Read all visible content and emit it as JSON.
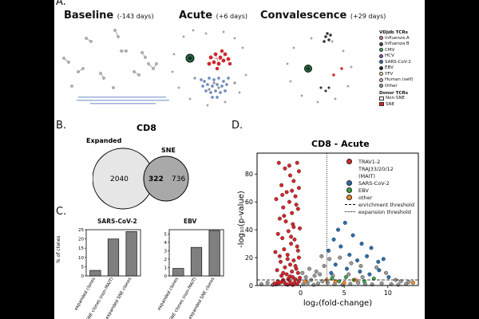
{
  "panels": {
    "a": {
      "letter": "A.",
      "networks": [
        {
          "name": "Baseline",
          "days": "(-143 days)"
        },
        {
          "name": "Acute",
          "days": "(+6 days)"
        },
        {
          "name": "Convalescence",
          "days": "(+29 days)"
        }
      ],
      "legend": {
        "vdjdb_title": "VDJdb TCRs",
        "vdjdb_items": [
          {
            "label": "Influenza A",
            "color": "#d97a8a"
          },
          {
            "label": "Influenza B",
            "color": "#444444"
          },
          {
            "label": "CMV",
            "color": "#3aa84a"
          },
          {
            "label": "HCV",
            "color": "#8a4fbf"
          },
          {
            "label": "SARS-CoV-2",
            "color": "#3f6fb5"
          },
          {
            "label": "EBV",
            "color": "#1f1f1f"
          },
          {
            "label": "YFV",
            "color": "#e8d7a0"
          },
          {
            "label": "Human (self)",
            "color": "#e0a8c8"
          },
          {
            "label": "Other",
            "color": "#9a9a9a"
          }
        ],
        "donor_title": "Donor TCRs",
        "donor_items": [
          {
            "label": "Non-SNE",
            "color": "#f2f2f2"
          },
          {
            "label": "SNE",
            "color": "#d9252b"
          }
        ]
      }
    },
    "b": {
      "letter": "B.",
      "title": "CD8",
      "left_label": "Expanded",
      "right_label": "SNE",
      "left_only": "2040",
      "overlap": "322",
      "right_only": "736"
    },
    "c": {
      "letter": "C.",
      "ylabel": "% of clones",
      "categories": [
        "expanded clones",
        "SNE clones (non-MAIT)",
        "expanded SNE clones"
      ]
    },
    "d": {
      "letter": "D.",
      "legend": [
        {
          "label": "TRAV1-2",
          "color": "#d9252b",
          "kind": "dot"
        },
        {
          "label": "TRAJ33/20/12",
          "color": "",
          "kind": "cont"
        },
        {
          "label": "(MAIT)",
          "color": "",
          "kind": "cont"
        },
        {
          "label": "SARS-CoV-2",
          "color": "#2b6fb0",
          "kind": "dot"
        },
        {
          "label": "EBV",
          "color": "#3aa84a",
          "kind": "dot"
        },
        {
          "label": "other",
          "color": "#f28c28",
          "kind": "dot"
        },
        {
          "label": "enrichment threshold",
          "color": "#000000",
          "kind": "dash"
        },
        {
          "label": "expansion threshold",
          "color": "#000000",
          "kind": "dot-line"
        }
      ]
    }
  },
  "chart_data": [
    {
      "type": "bar",
      "title": "SARS-CoV-2",
      "categories": [
        "expanded clones",
        "SNE clones (non-MAIT)",
        "expanded SNE clones"
      ],
      "values": [
        3.0,
        20.0,
        24.0
      ],
      "ylabel": "% of clones",
      "ylim": [
        0,
        25
      ],
      "yticks": [
        0,
        5,
        10,
        15,
        20,
        25
      ],
      "color": "#7f7f7f"
    },
    {
      "type": "bar",
      "title": "EBV",
      "categories": [
        "expanded clones",
        "SNE clones (non-MAIT)",
        "expanded SNE clones"
      ],
      "values": [
        0.9,
        3.4,
        5.4
      ],
      "ylim": [
        0,
        5.5
      ],
      "yticks": [
        0.0,
        1.0,
        2.0,
        3.0,
        4.0,
        5.0
      ],
      "color": "#7f7f7f"
    },
    {
      "type": "scatter",
      "title": "CD8 - Acute",
      "xlabel": "log₂(fold-change)",
      "ylabel": "-log₁₀(p-value)",
      "xlim": [
        -5,
        13.5
      ],
      "ylim": [
        0,
        95
      ],
      "xticks": [
        0,
        5,
        10
      ],
      "yticks": [
        0,
        20,
        40,
        60,
        80
      ],
      "enrichment_threshold_y": 4,
      "expansion_threshold_x": 3,
      "series": [
        {
          "name": "TRAV1-2 TRAJ33/20/12 (MAIT)",
          "color": "#d9252b",
          "points": [
            [
              -2.5,
              88
            ],
            [
              -1.8,
              84
            ],
            [
              -0.4,
              88
            ],
            [
              -1.2,
              79
            ],
            [
              -0.8,
              75
            ],
            [
              -2.2,
              72
            ],
            [
              -0.2,
              70
            ],
            [
              -1.6,
              67
            ],
            [
              -2.8,
              62
            ],
            [
              -0.6,
              64
            ],
            [
              -1.3,
              60
            ],
            [
              -2.0,
              56
            ],
            [
              -0.3,
              55
            ],
            [
              -1.0,
              52
            ],
            [
              -2.4,
              48
            ],
            [
              -1.7,
              46
            ],
            [
              -0.9,
              44
            ],
            [
              -0.1,
              41
            ],
            [
              -1.4,
              39
            ],
            [
              -2.6,
              37
            ],
            [
              -2.1,
              34
            ],
            [
              -0.7,
              33
            ],
            [
              -1.1,
              30
            ],
            [
              -0.4,
              28
            ],
            [
              -1.9,
              26
            ],
            [
              -2.9,
              24
            ],
            [
              -1.5,
              22
            ],
            [
              -0.2,
              20
            ],
            [
              -0.8,
              18
            ],
            [
              -2.3,
              17
            ],
            [
              -1.2,
              15
            ],
            [
              -1.8,
              13
            ],
            [
              -0.5,
              12
            ],
            [
              -2.7,
              11
            ],
            [
              -1.0,
              10
            ],
            [
              -0.3,
              9
            ],
            [
              -1.6,
              8
            ],
            [
              -2.2,
              7
            ],
            [
              -0.9,
              6
            ],
            [
              -1.4,
              5
            ],
            [
              -0.6,
              4.5
            ],
            [
              -2.0,
              4
            ],
            [
              -1.3,
              3.5
            ],
            [
              -0.2,
              3
            ],
            [
              -1.9,
              2.5
            ],
            [
              -0.7,
              2
            ],
            [
              -2.5,
              1.8
            ],
            [
              -1.1,
              1.5
            ],
            [
              -0.4,
              1.2
            ],
            [
              -1.7,
              1
            ],
            [
              -2.8,
              0.8
            ],
            [
              -1.5,
              0.6
            ],
            [
              -0.9,
              0.4
            ],
            [
              -2.3,
              2.2
            ],
            [
              -0.1,
              5.5
            ],
            [
              -1.2,
              6.5
            ],
            [
              -2.0,
              9
            ],
            [
              -0.6,
              14
            ],
            [
              -1.5,
              19
            ],
            [
              -2.4,
              21
            ],
            [
              -0.3,
              25
            ],
            [
              -1.1,
              35
            ],
            [
              -0.8,
              42
            ],
            [
              -1.9,
              50
            ],
            [
              -0.5,
              58
            ],
            [
              -2.1,
              65
            ],
            [
              -1.0,
              68
            ],
            [
              -0.2,
              82
            ],
            [
              -1.3,
              86
            ],
            [
              -2.6,
              3
            ],
            [
              -3.0,
              1.5
            ]
          ]
        },
        {
          "name": "SARS-CoV-2",
          "color": "#2b6fb0",
          "points": [
            [
              3.2,
              25
            ],
            [
              3.8,
              33
            ],
            [
              4.3,
              40
            ],
            [
              4.6,
              28
            ],
            [
              5.1,
              45
            ],
            [
              5.6,
              22
            ],
            [
              6.0,
              36
            ],
            [
              6.5,
              18
            ],
            [
              7.0,
              30
            ],
            [
              7.6,
              21
            ],
            [
              8.1,
              27
            ],
            [
              8.9,
              17
            ],
            [
              9.5,
              19
            ],
            [
              4.0,
              15
            ],
            [
              5.3,
              12
            ],
            [
              6.8,
              10
            ],
            [
              3.5,
              9
            ],
            [
              7.9,
              8
            ],
            [
              9.0,
              11
            ],
            [
              10.1,
              6
            ]
          ]
        },
        {
          "name": "EBV",
          "color": "#3aa84a",
          "points": [
            [
              3.6,
              5
            ],
            [
              4.4,
              3
            ],
            [
              5.2,
              6
            ],
            [
              6.1,
              4
            ],
            [
              7.3,
              3
            ],
            [
              8.4,
              5
            ]
          ]
        },
        {
          "name": "other",
          "color": "#f28c28",
          "points": [
            [
              3.0,
              4
            ],
            [
              4.0,
              3
            ],
            [
              5.0,
              2
            ],
            [
              6.3,
              4
            ],
            [
              12.9,
              2
            ],
            [
              0.5,
              3
            ]
          ]
        },
        {
          "name": "non-significant",
          "color": "#9a9a9a",
          "points": [
            [
              -4.5,
              1
            ],
            [
              -3.8,
              2
            ],
            [
              -3.2,
              0.5
            ],
            [
              0.3,
              1
            ],
            [
              0.8,
              2
            ],
            [
              1.5,
              0.5
            ],
            [
              2.0,
              1.5
            ],
            [
              2.5,
              3
            ],
            [
              1.2,
              4
            ],
            [
              0.6,
              6
            ],
            [
              2.2,
              8
            ],
            [
              1.8,
              10
            ],
            [
              3.1,
              2
            ],
            [
              3.9,
              1
            ],
            [
              4.8,
              0.5
            ],
            [
              5.7,
              1.2
            ],
            [
              6.6,
              2
            ],
            [
              7.4,
              1
            ],
            [
              8.2,
              0.8
            ],
            [
              9.3,
              1.5
            ],
            [
              10.4,
              1
            ],
            [
              11.2,
              0.6
            ],
            [
              12.1,
              1.2
            ],
            [
              1.0,
              12
            ],
            [
              2.7,
              14
            ],
            [
              3.3,
              19
            ],
            [
              4.5,
              20
            ],
            [
              5.8,
              16
            ],
            [
              6.9,
              14
            ],
            [
              2.4,
              21
            ],
            [
              8.7,
              13
            ],
            [
              9.8,
              9
            ],
            [
              10.9,
              4
            ],
            [
              1.6,
              7
            ],
            [
              0.2,
              9
            ],
            [
              3.7,
              7
            ],
            [
              5.5,
              8
            ],
            [
              7.1,
              6
            ],
            [
              11.5,
              3
            ],
            [
              12.4,
              2.5
            ]
          ]
        }
      ]
    }
  ]
}
